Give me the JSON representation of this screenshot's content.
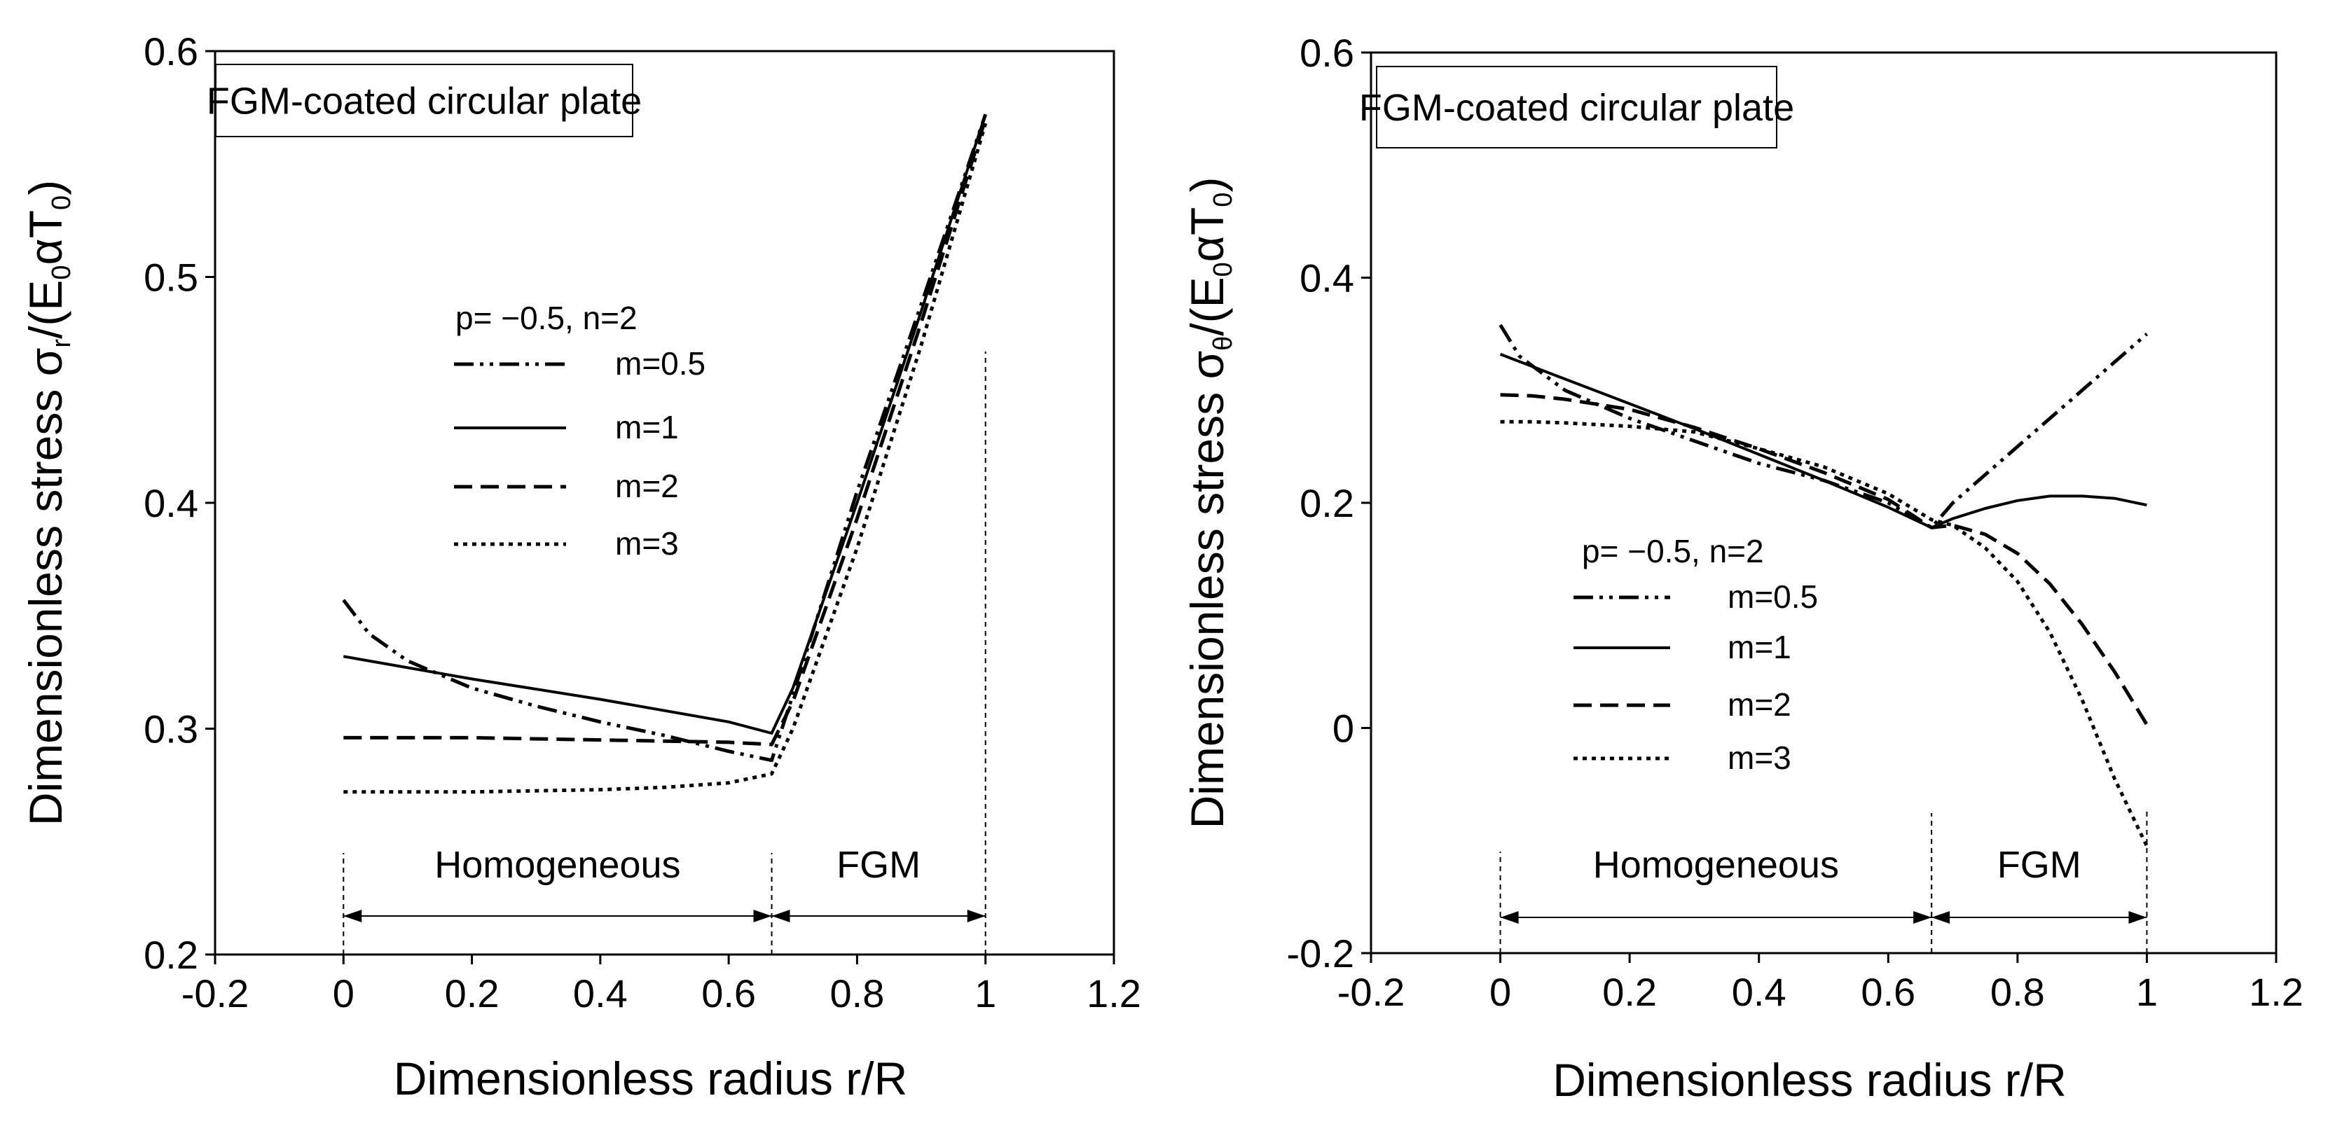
{
  "chart_data": [
    {
      "type": "line",
      "title": "FGM-coated circular plate",
      "xlabel": "Dimensionless radius  r/R",
      "ylabel": "Dimensionless stress σr/(E0αT0)",
      "ylabel_parts": {
        "lead": "Dimensionless stress σ",
        "sub1": "r",
        "mid": "/(E",
        "sub2": "0",
        "mid2": "αT",
        "sub3": "0",
        "tail": ")"
      },
      "xlim": [
        -0.2,
        1.2
      ],
      "ylim": [
        0.2,
        0.6
      ],
      "x_ticks": [
        "-0.2",
        "0",
        "0.2",
        "0.4",
        "0.6",
        "0.8",
        "1",
        "1.2"
      ],
      "y_ticks": [
        "0.2",
        "0.3",
        "0.4",
        "0.5",
        "0.6"
      ],
      "legend_title": "p= −0.5, n=2",
      "regions": {
        "homogeneous": "Homogeneous",
        "fgm": "FGM",
        "boundary": 0.667
      },
      "series": [
        {
          "name": "m=0.5",
          "style": "dashdotdot",
          "x": [
            0,
            0.04,
            0.1,
            0.2,
            0.3,
            0.4,
            0.5,
            0.6,
            0.667,
            0.7,
            0.8,
            0.9,
            1.0
          ],
          "y": [
            0.357,
            0.342,
            0.33,
            0.318,
            0.31,
            0.303,
            0.297,
            0.29,
            0.286,
            0.315,
            0.405,
            0.488,
            0.572
          ]
        },
        {
          "name": "m=1",
          "style": "solid",
          "x": [
            0,
            0.2,
            0.4,
            0.6,
            0.667,
            0.7,
            0.8,
            0.9,
            1.0
          ],
          "y": [
            0.332,
            0.322,
            0.313,
            0.303,
            0.298,
            0.318,
            0.4,
            0.485,
            0.572
          ]
        },
        {
          "name": "m=2",
          "style": "dashed",
          "x": [
            0,
            0.2,
            0.4,
            0.6,
            0.667,
            0.7,
            0.8,
            0.9,
            1.0
          ],
          "y": [
            0.296,
            0.296,
            0.295,
            0.294,
            0.293,
            0.312,
            0.393,
            0.48,
            0.57
          ]
        },
        {
          "name": "m=3",
          "style": "dotted",
          "x": [
            0,
            0.2,
            0.4,
            0.5,
            0.6,
            0.667,
            0.7,
            0.8,
            0.9,
            1.0
          ],
          "y": [
            0.272,
            0.272,
            0.273,
            0.274,
            0.276,
            0.28,
            0.3,
            0.38,
            0.47,
            0.568
          ]
        }
      ]
    },
    {
      "type": "line",
      "title": "FGM-coated circular plate",
      "xlabel": "Dimensionless radius  r/R",
      "ylabel": "Dimensionless stress σθ/(E0αT0)",
      "ylabel_parts": {
        "lead": "Dimensionless stress σ",
        "sub1": "θ",
        "mid": "/(E",
        "sub2": "0",
        "mid2": "αT",
        "sub3": "0",
        "tail": ")"
      },
      "xlim": [
        -0.2,
        1.2
      ],
      "ylim": [
        -0.2,
        0.6
      ],
      "x_ticks": [
        "-0.2",
        "0",
        "0.2",
        "0.4",
        "0.6",
        "0.8",
        "1",
        "1.2"
      ],
      "y_ticks": [
        "-0.2",
        "0",
        "0.2",
        "0.4",
        "0.6"
      ],
      "legend_title": "p= −0.5, n=2",
      "regions": {
        "homogeneous": "Homogeneous",
        "fgm": "FGM",
        "boundary": 0.667
      },
      "series": [
        {
          "name": "m=0.5",
          "style": "dashdotdot",
          "x": [
            0,
            0.03,
            0.1,
            0.2,
            0.3,
            0.4,
            0.5,
            0.6,
            0.667,
            0.7,
            0.8,
            0.9,
            1.0
          ],
          "y": [
            0.358,
            0.33,
            0.3,
            0.275,
            0.255,
            0.235,
            0.22,
            0.2,
            0.178,
            0.2,
            0.25,
            0.3,
            0.35
          ]
        },
        {
          "name": "m=1",
          "style": "solid",
          "x": [
            0,
            0.1,
            0.2,
            0.3,
            0.4,
            0.5,
            0.6,
            0.667,
            0.7,
            0.75,
            0.8,
            0.85,
            0.9,
            0.95,
            1.0
          ],
          "y": [
            0.332,
            0.31,
            0.288,
            0.266,
            0.243,
            0.22,
            0.196,
            0.178,
            0.186,
            0.195,
            0.202,
            0.206,
            0.206,
            0.204,
            0.198
          ]
        },
        {
          "name": "m=2",
          "style": "dashed",
          "x": [
            0,
            0.05,
            0.1,
            0.2,
            0.3,
            0.4,
            0.5,
            0.6,
            0.667,
            0.7,
            0.75,
            0.8,
            0.85,
            0.9,
            0.95,
            1.0
          ],
          "y": [
            0.296,
            0.295,
            0.292,
            0.283,
            0.267,
            0.248,
            0.227,
            0.203,
            0.178,
            0.18,
            0.172,
            0.155,
            0.128,
            0.092,
            0.05,
            0.003
          ]
        },
        {
          "name": "m=3",
          "style": "dotted",
          "x": [
            0,
            0.05,
            0.1,
            0.2,
            0.3,
            0.4,
            0.5,
            0.6,
            0.667,
            0.7,
            0.75,
            0.8,
            0.85,
            0.9,
            0.95,
            1.0
          ],
          "y": [
            0.272,
            0.272,
            0.271,
            0.268,
            0.263,
            0.248,
            0.232,
            0.208,
            0.185,
            0.18,
            0.16,
            0.13,
            0.085,
            0.025,
            -0.045,
            -0.105
          ]
        }
      ]
    }
  ]
}
